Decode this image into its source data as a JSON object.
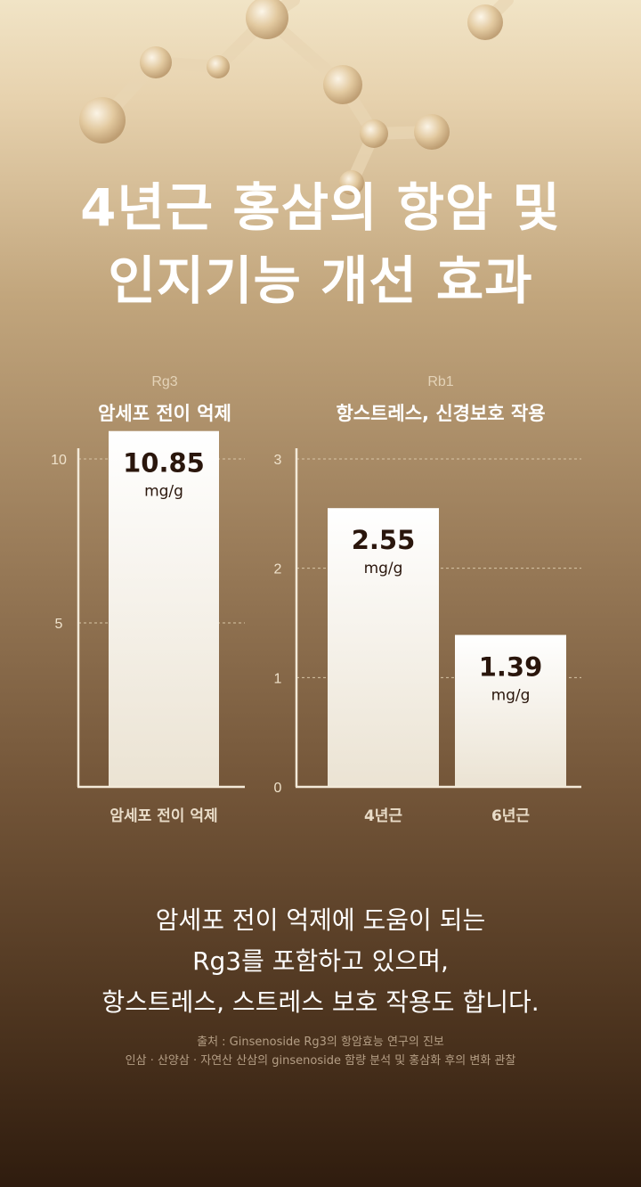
{
  "headline": {
    "line1": "4년근 홍삼의 항암 및",
    "line2": "인지기능 개선 효과"
  },
  "colors": {
    "bar_fill_top": "#ffffff",
    "bar_fill_bottom": "#ebe3d3",
    "axis": "#f3ead9",
    "value_text": "#2a160c",
    "title_text": "#ffffff"
  },
  "chart_data": [
    {
      "type": "bar",
      "subtitle": "Rg3",
      "title": "암세포 전이 억제",
      "categories": [
        "암세포 전이 억제"
      ],
      "values": [
        10.85
      ],
      "value_labels": [
        "10.85"
      ],
      "unit": "mg/g",
      "ylim": [
        0,
        12
      ],
      "yticks": [
        5,
        10
      ],
      "ytick_labels": [
        "5",
        "10"
      ],
      "grid": true,
      "xlabel": "",
      "ylabel": ""
    },
    {
      "type": "bar",
      "subtitle": "Rb1",
      "title": "항스트레스, 신경보호 작용",
      "categories": [
        "4년근",
        "6년근"
      ],
      "values": [
        2.55,
        1.39
      ],
      "value_labels": [
        "2.55",
        "1.39"
      ],
      "unit": "mg/g",
      "ylim": [
        0,
        3
      ],
      "yticks": [
        0,
        1,
        2,
        3
      ],
      "ytick_labels": [
        "0",
        "1",
        "2",
        "3"
      ],
      "grid": true,
      "xlabel": "",
      "ylabel": ""
    }
  ],
  "body": {
    "line1": "암세포 전이 억제에 도움이 되는",
    "line2": "Rg3를 포함하고 있으며,",
    "line3": "항스트레스, 스트레스 보호 작용도 합니다."
  },
  "source": {
    "line1": "출처 : Ginsenoside Rg3의 항암효능 연구의 진보",
    "line2": "인삼 · 산양삼 · 자연산 산삼의 ginsenoside 함량 분석 및 홍삼화 후의 변화 관찰"
  }
}
